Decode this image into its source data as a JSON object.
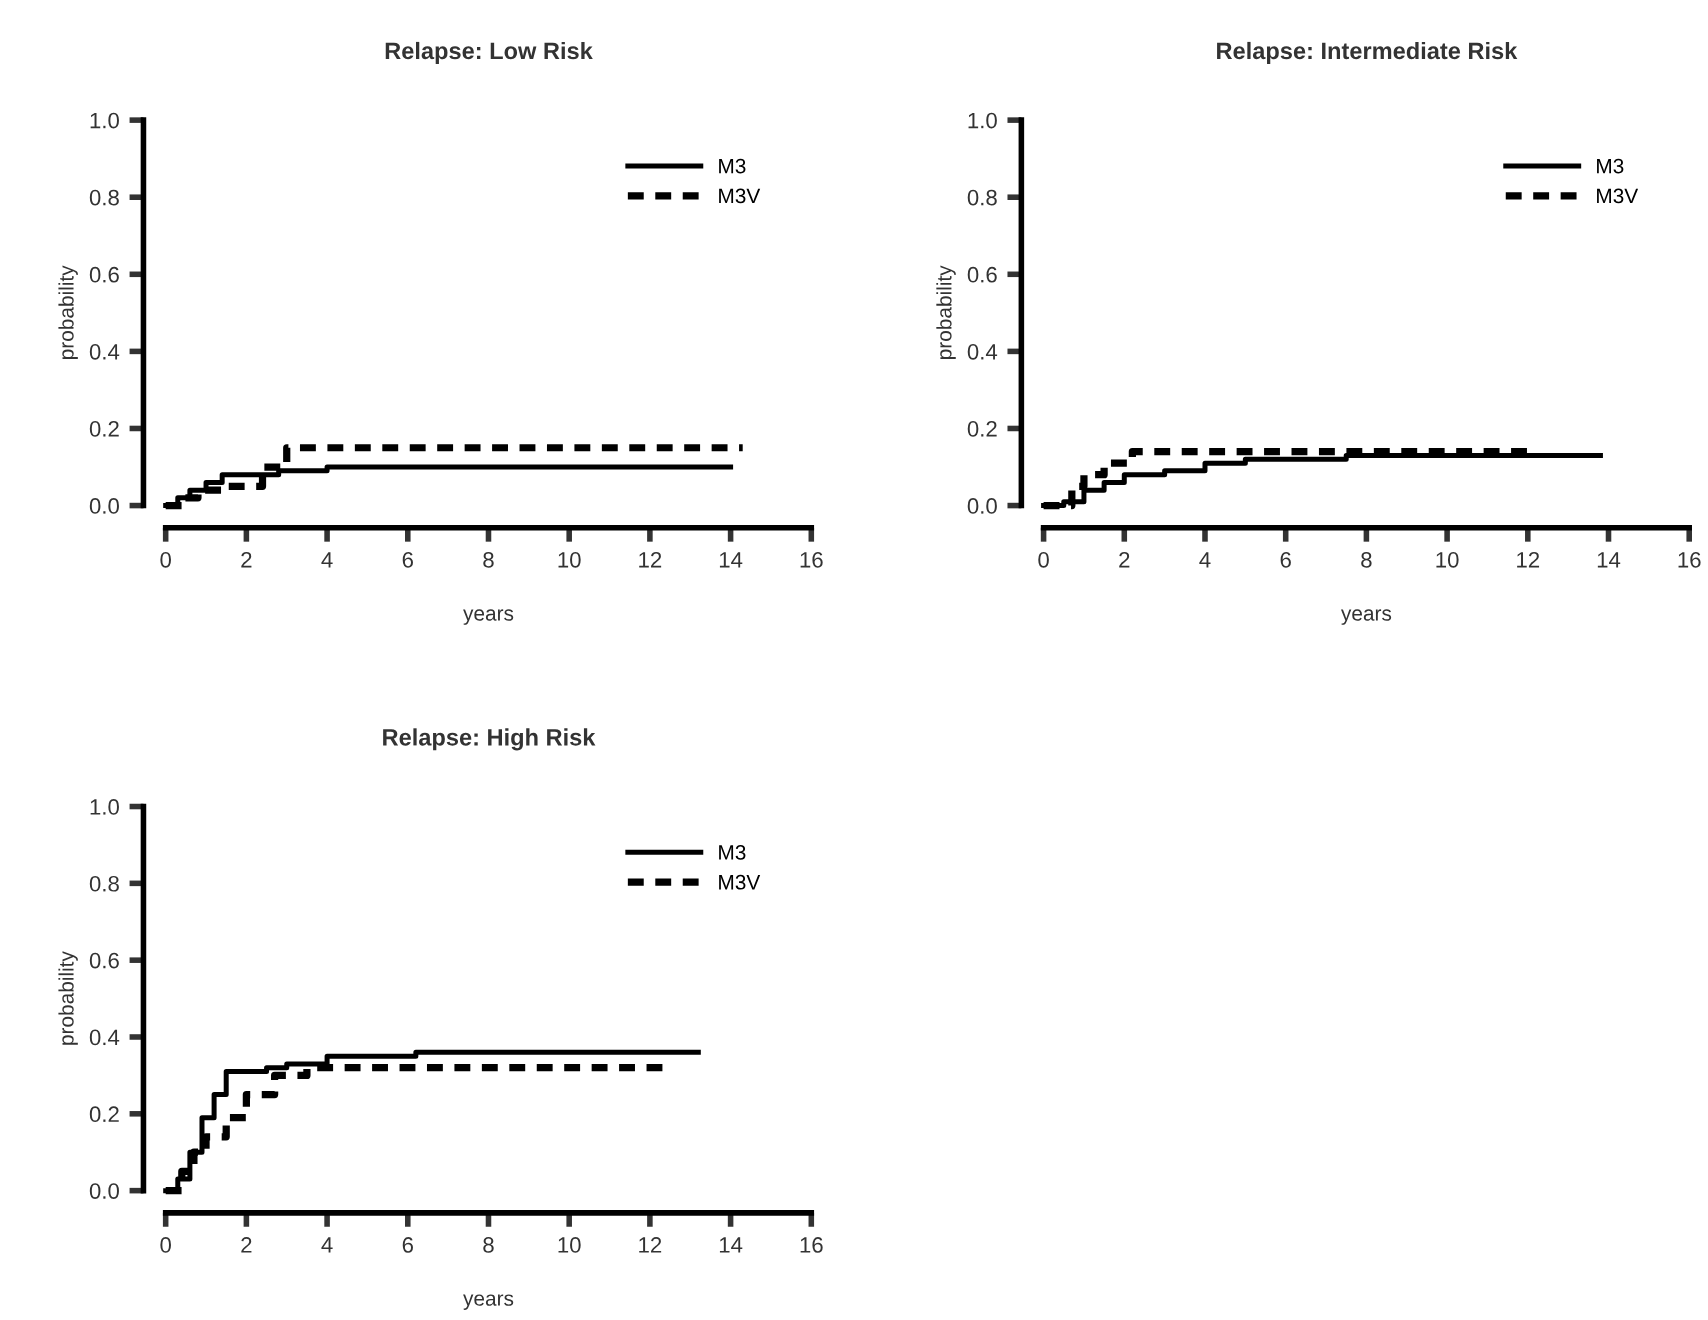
{
  "chart_data": [
    {
      "type": "step",
      "title": "Relapse: Low Risk",
      "xlabel": "years",
      "ylabel": "probability",
      "xlim": [
        0,
        16
      ],
      "ylim": [
        0,
        1
      ],
      "xticks": [
        0,
        2,
        4,
        6,
        8,
        10,
        12,
        14,
        16
      ],
      "yticks": [
        {
          "value": 0,
          "label": "0.0"
        },
        {
          "value": 0.2,
          "label": "0.2"
        },
        {
          "value": 0.4,
          "label": "0.4"
        },
        {
          "value": 0.6,
          "label": "0.6"
        },
        {
          "value": 0.8,
          "label": "0.8"
        },
        {
          "value": 1,
          "label": "1.0"
        }
      ],
      "legend": "top right",
      "grid": false,
      "series": [
        {
          "name": "M3",
          "color": "#000000",
          "line_style": "solid",
          "x": [
            0,
            0.3,
            0.6,
            1.0,
            1.4,
            2.8,
            4.0,
            14.0
          ],
          "values": [
            0,
            0.02,
            0.04,
            0.06,
            0.08,
            0.09,
            0.1,
            0.1
          ]
        },
        {
          "name": "M3V",
          "color": "#000000",
          "line_style": "dashed",
          "x": [
            0,
            0.4,
            0.8,
            1.5,
            2.4,
            3.0,
            14.3
          ],
          "values": [
            0,
            0.02,
            0.04,
            0.05,
            0.1,
            0.15,
            0.15
          ]
        }
      ]
    },
    {
      "type": "step",
      "title": "Relapse: Intermediate Risk",
      "xlabel": "years",
      "ylabel": "probability",
      "xlim": [
        0,
        16
      ],
      "ylim": [
        0,
        1
      ],
      "xticks": [
        0,
        2,
        4,
        6,
        8,
        10,
        12,
        14,
        16
      ],
      "yticks": [
        {
          "value": 0,
          "label": "0.0"
        },
        {
          "value": 0.2,
          "label": "0.2"
        },
        {
          "value": 0.4,
          "label": "0.4"
        },
        {
          "value": 0.6,
          "label": "0.6"
        },
        {
          "value": 0.8,
          "label": "0.8"
        },
        {
          "value": 1,
          "label": "1.0"
        }
      ],
      "legend": "top right",
      "grid": false,
      "series": [
        {
          "name": "M3",
          "color": "#000000",
          "line_style": "solid",
          "x": [
            0,
            0.5,
            1.0,
            1.5,
            2.0,
            3.0,
            4.0,
            5.0,
            7.5,
            13.8
          ],
          "values": [
            0,
            0.01,
            0.04,
            0.06,
            0.08,
            0.09,
            0.11,
            0.12,
            0.13,
            0.13
          ]
        },
        {
          "name": "M3V",
          "color": "#000000",
          "line_style": "dashed",
          "x": [
            0,
            0.7,
            1.0,
            1.5,
            2.2,
            12.2
          ],
          "values": [
            0,
            0.05,
            0.08,
            0.11,
            0.14,
            0.14
          ]
        }
      ]
    },
    {
      "type": "step",
      "title": "Relapse: High Risk",
      "xlabel": "years",
      "ylabel": "probability",
      "xlim": [
        0,
        16
      ],
      "ylim": [
        0,
        1
      ],
      "xticks": [
        0,
        2,
        4,
        6,
        8,
        10,
        12,
        14,
        16
      ],
      "yticks": [
        {
          "value": 0,
          "label": "0.0"
        },
        {
          "value": 0.2,
          "label": "0.2"
        },
        {
          "value": 0.4,
          "label": "0.4"
        },
        {
          "value": 0.6,
          "label": "0.6"
        },
        {
          "value": 0.8,
          "label": "0.8"
        },
        {
          "value": 1,
          "label": "1.0"
        }
      ],
      "legend": "top right",
      "grid": false,
      "series": [
        {
          "name": "M3",
          "color": "#000000",
          "line_style": "solid",
          "x": [
            0,
            0.3,
            0.6,
            0.9,
            1.2,
            1.5,
            2.5,
            3.0,
            4.0,
            6.2,
            13.2
          ],
          "values": [
            0,
            0.03,
            0.1,
            0.19,
            0.25,
            0.31,
            0.32,
            0.33,
            0.35,
            0.36,
            0.36
          ]
        },
        {
          "name": "M3V",
          "color": "#000000",
          "line_style": "dashed",
          "x": [
            0,
            0.4,
            0.7,
            1.0,
            1.5,
            2.0,
            2.7,
            3.5,
            12.5
          ],
          "values": [
            0,
            0.05,
            0.1,
            0.14,
            0.19,
            0.25,
            0.3,
            0.32,
            0.32
          ]
        }
      ]
    }
  ]
}
